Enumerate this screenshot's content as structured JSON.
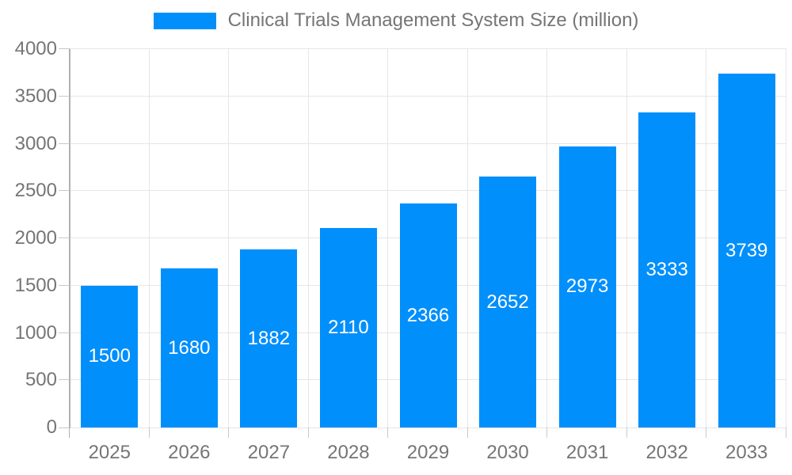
{
  "legend": {
    "label": "Clinical Trials Management System Size (million)"
  },
  "colors": {
    "bar": "#008FFB",
    "bar_label": "#ffffff",
    "axis_text": "#757575",
    "grid": "#e6e6e6",
    "axis_line": "#b0b0b0",
    "tick": "#c9c9c9",
    "background": "#ffffff"
  },
  "chart_data": {
    "type": "bar",
    "title": "Clinical Trials Management System Size (million)",
    "categories": [
      "2025",
      "2026",
      "2027",
      "2028",
      "2029",
      "2030",
      "2031",
      "2032",
      "2033"
    ],
    "values": [
      1500,
      1680,
      1882,
      2110,
      2366,
      2652,
      2973,
      3333,
      3739
    ],
    "data_labels": [
      "1500",
      "1680",
      "1882",
      "2110",
      "2366",
      "2652",
      "2973",
      "3333",
      "3739"
    ],
    "xlabel": "",
    "ylabel": "",
    "ylim": [
      0,
      4000
    ],
    "ytick_step": 500,
    "ytick_labels": [
      "0",
      "500",
      "1000",
      "1500",
      "2000",
      "2500",
      "3000",
      "3500",
      "4000"
    ],
    "grid": true,
    "legend_position": "top-center",
    "data_label_position": "center-of-bar",
    "data_label_color": "#ffffff"
  }
}
